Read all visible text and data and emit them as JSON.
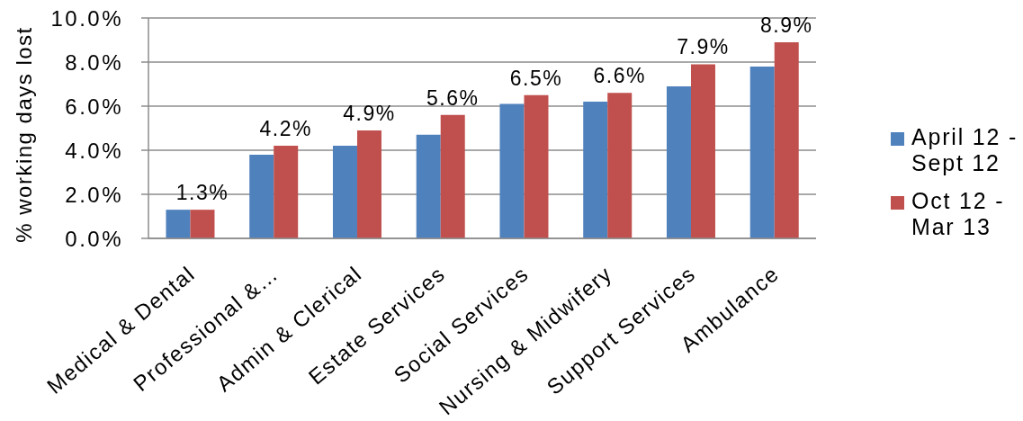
{
  "chart_data": {
    "type": "bar",
    "categories": [
      "Medical & Dental",
      "Professional &…",
      "Admin & Clerical",
      "Estate Services",
      "Social Services",
      "Nursing & Midwifery",
      "Support Services",
      "Ambulance"
    ],
    "series": [
      {
        "name": "April 12 - Sept 12",
        "color": "#4f81bd",
        "values": [
          1.3,
          3.8,
          4.2,
          4.7,
          6.1,
          6.2,
          6.9,
          7.8
        ]
      },
      {
        "name": "Oct 12 - Mar 13",
        "color": "#c0504d",
        "values": [
          1.3,
          4.2,
          4.9,
          5.6,
          6.5,
          6.6,
          7.9,
          8.9
        ],
        "value_labels": [
          "1.3%",
          "4.2%",
          "4.9%",
          "5.6%",
          "6.5%",
          "6.6%",
          "7.9%",
          "8.9%"
        ]
      }
    ],
    "ylabel": "% working days lost",
    "ylim": [
      0,
      10
    ],
    "yticks": [
      {
        "value": 0,
        "label": "0.0%"
      },
      {
        "value": 2,
        "label": "2.0%"
      },
      {
        "value": 4,
        "label": "4.0%"
      },
      {
        "value": 6,
        "label": "6.0%"
      },
      {
        "value": 8,
        "label": "8.0%"
      },
      {
        "value": 10,
        "label": "10.0%"
      }
    ],
    "grid": "y",
    "legend": "right"
  }
}
